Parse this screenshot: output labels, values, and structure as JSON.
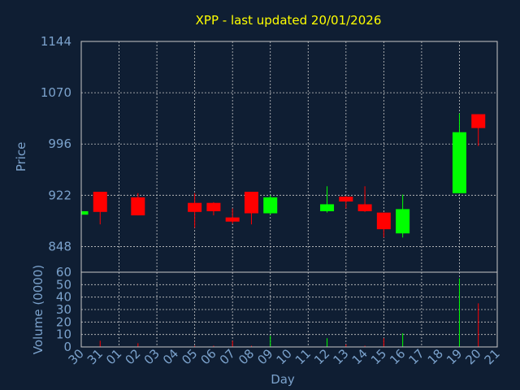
{
  "chart_data": {
    "type": "candlestick",
    "title": "XPP - last updated 20/01/2026",
    "xlabel": "Day",
    "price_panel": {
      "ylabel": "Price",
      "ylim": [
        811,
        1144
      ],
      "yticks": [
        "1144",
        "1070",
        "996",
        "922",
        "848"
      ],
      "grid": true
    },
    "volume_panel": {
      "ylabel": "Volume (0000)",
      "ylim": [
        0,
        60
      ],
      "yticks": [
        "60",
        "50",
        "40",
        "30",
        "20",
        "10",
        "0"
      ],
      "grid": true
    },
    "day_labels": [
      "30",
      "31",
      "01",
      "02",
      "03",
      "04",
      "05",
      "06",
      "07",
      "08",
      "09",
      "10",
      "11",
      "12",
      "13",
      "14",
      "15",
      "16",
      "17",
      "18",
      "19",
      "20",
      "21"
    ],
    "up_color": "#00ff00",
    "down_color": "#ff0000",
    "candles": [
      {
        "day": "30",
        "open": 894,
        "high": 899,
        "low": 894,
        "close": 899,
        "volume": 0.5
      },
      {
        "day": "31",
        "open": 927,
        "high": 927,
        "low": 880,
        "close": 898,
        "volume": 5
      },
      {
        "day": "02",
        "open": 919,
        "high": 925,
        "low": 893,
        "close": 893,
        "volume": 3
      },
      {
        "day": "05",
        "open": 911,
        "high": 925,
        "low": 875,
        "close": 898,
        "volume": 1
      },
      {
        "day": "06",
        "open": 911,
        "high": 912,
        "low": 893,
        "close": 899,
        "volume": 1
      },
      {
        "day": "07",
        "open": 890,
        "high": 903,
        "low": 881,
        "close": 884,
        "volume": 5
      },
      {
        "day": "08",
        "open": 927,
        "high": 927,
        "low": 880,
        "close": 896,
        "volume": 1
      },
      {
        "day": "09",
        "open": 896,
        "high": 922,
        "low": 894,
        "close": 919,
        "volume": 9
      },
      {
        "day": "12",
        "open": 899,
        "high": 935,
        "low": 897,
        "close": 909,
        "volume": 7
      },
      {
        "day": "13",
        "open": 920,
        "high": 921,
        "low": 903,
        "close": 913,
        "volume": 2
      },
      {
        "day": "14",
        "open": 909,
        "high": 935,
        "low": 898,
        "close": 899,
        "volume": 1
      },
      {
        "day": "15",
        "open": 897,
        "high": 897,
        "low": 861,
        "close": 873,
        "volume": 7
      },
      {
        "day": "16",
        "open": 867,
        "high": 923,
        "low": 861,
        "close": 902,
        "volume": 11
      },
      {
        "day": "19",
        "open": 925,
        "high": 1040,
        "low": 925,
        "close": 1013,
        "volume": 55
      },
      {
        "day": "20",
        "open": 1039,
        "high": 1039,
        "low": 993,
        "close": 1019,
        "volume": 35
      }
    ]
  }
}
